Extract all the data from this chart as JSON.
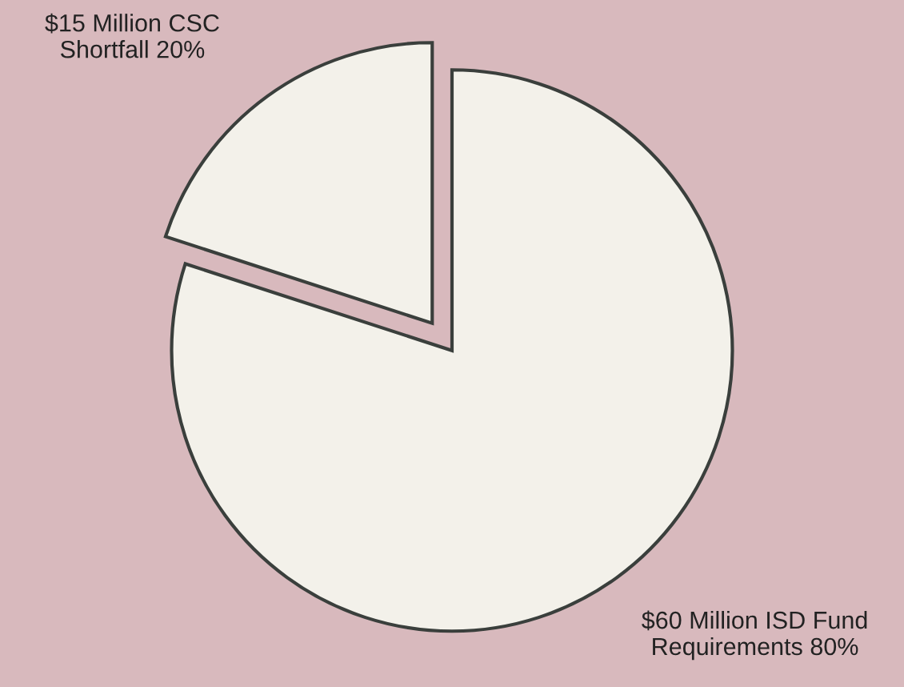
{
  "chart_data": {
    "type": "pie",
    "categories": [
      "$15 Million CSC\nShortfall 20%",
      "$60 Million ISD Fund\nRequirements 80%"
    ],
    "values": [
      15,
      60
    ],
    "colors": [
      "#f3f1ea",
      "#f3f1ea"
    ]
  }
}
